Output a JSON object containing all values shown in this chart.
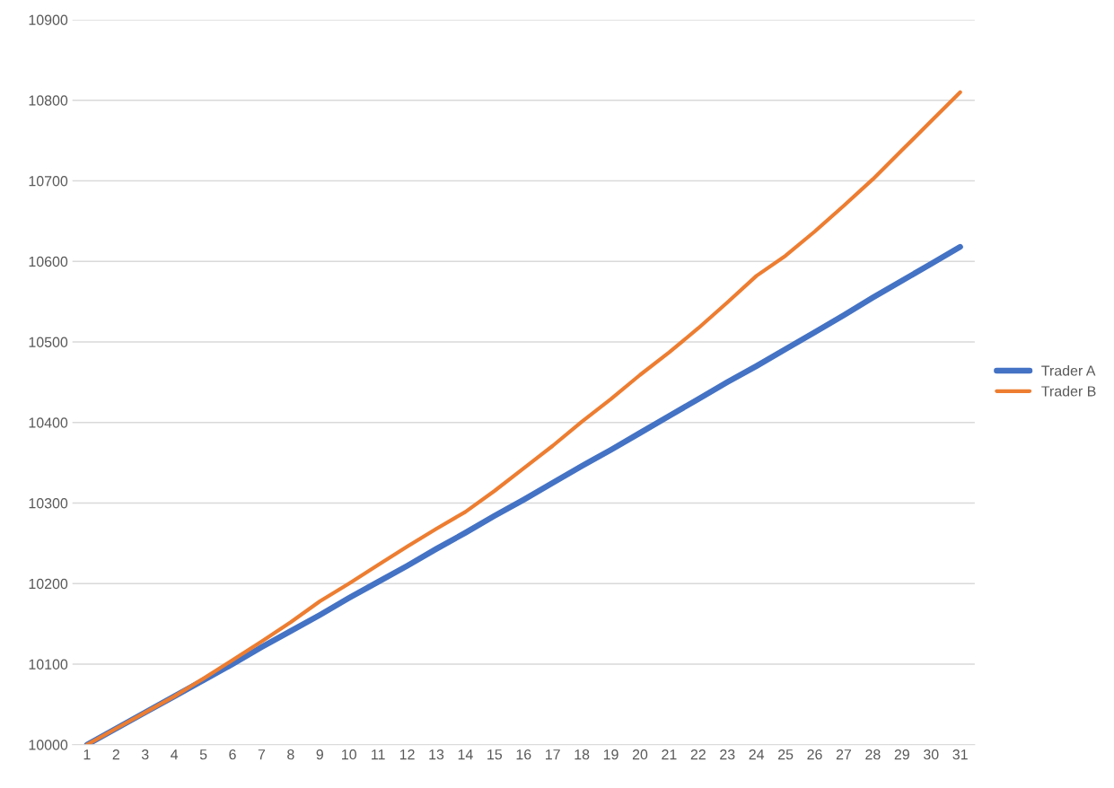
{
  "chart_data": {
    "type": "line",
    "categories": [
      "1",
      "2",
      "3",
      "4",
      "5",
      "6",
      "7",
      "8",
      "9",
      "10",
      "11",
      "12",
      "13",
      "14",
      "15",
      "16",
      "17",
      "18",
      "19",
      "20",
      "21",
      "22",
      "23",
      "24",
      "25",
      "26",
      "27",
      "28",
      "29",
      "30",
      "31"
    ],
    "series": [
      {
        "name": "Trader A",
        "color": "#4472c4",
        "values": [
          10000,
          10020,
          10040,
          10060,
          10080,
          10100,
          10121,
          10141,
          10161,
          10182,
          10202,
          10222,
          10243,
          10263,
          10284,
          10304,
          10325,
          10346,
          10366,
          10387,
          10408,
          10429,
          10450,
          10470,
          10491,
          10512,
          10533,
          10555,
          10576,
          10597,
          10618
        ]
      },
      {
        "name": "Trader B",
        "color": "#ed7d31",
        "values": [
          10000,
          10020,
          10040,
          10060,
          10082,
          10105,
          10128,
          10152,
          10178,
          10200,
          10223,
          10246,
          10268,
          10289,
          10315,
          10343,
          10371,
          10401,
          10429,
          10459,
          10487,
          10517,
          10549,
          10582,
          10607,
          10637,
          10669,
          10702,
          10738,
          10774,
          10810
        ]
      }
    ],
    "ylim": [
      10000,
      10900
    ],
    "yticks": [
      10000,
      10100,
      10200,
      10300,
      10400,
      10500,
      10600,
      10700,
      10800,
      10900
    ],
    "grid": "y",
    "legend": "right",
    "marker": "none",
    "line_style": "solid"
  }
}
